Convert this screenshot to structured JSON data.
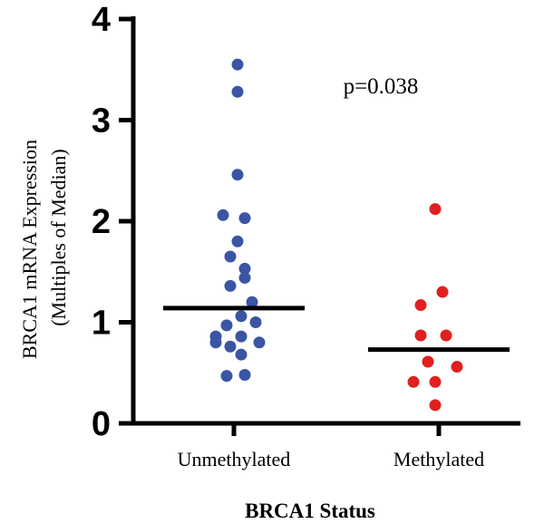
{
  "chart_data": {
    "type": "scatter",
    "title": "",
    "xlabel": "BRCA1 Status",
    "ylabel_line1": "BRCA1 mRNA Expression",
    "ylabel_line2": "(Multiples of Median)",
    "categories": [
      "Unmethylated",
      "Methylated"
    ],
    "ylim": [
      0,
      4
    ],
    "yticks": [
      "0",
      "1",
      "2",
      "3",
      "4"
    ],
    "annotation": "p=0.038",
    "grid": false,
    "series": [
      {
        "category": "Unmethylated",
        "color": "#3a55a4",
        "median": 1.14,
        "points": [
          {
            "x": 0.02,
            "y": 3.55
          },
          {
            "x": 0.02,
            "y": 3.28
          },
          {
            "x": 0.02,
            "y": 2.46
          },
          {
            "x": -0.06,
            "y": 2.06
          },
          {
            "x": 0.06,
            "y": 2.03
          },
          {
            "x": 0.02,
            "y": 1.8
          },
          {
            "x": -0.02,
            "y": 1.65
          },
          {
            "x": 0.06,
            "y": 1.53
          },
          {
            "x": 0.06,
            "y": 1.44
          },
          {
            "x": -0.02,
            "y": 1.36
          },
          {
            "x": 0.1,
            "y": 1.2
          },
          {
            "x": 0.04,
            "y": 1.06
          },
          {
            "x": 0.12,
            "y": 1.0
          },
          {
            "x": -0.04,
            "y": 0.97
          },
          {
            "x": -0.1,
            "y": 0.86
          },
          {
            "x": 0.04,
            "y": 0.86
          },
          {
            "x": -0.1,
            "y": 0.8
          },
          {
            "x": 0.14,
            "y": 0.8
          },
          {
            "x": -0.02,
            "y": 0.76
          },
          {
            "x": 0.04,
            "y": 0.68
          },
          {
            "x": -0.04,
            "y": 0.47
          },
          {
            "x": 0.06,
            "y": 0.48
          }
        ]
      },
      {
        "category": "Methylated",
        "color": "#e02020",
        "median": 0.73,
        "points": [
          {
            "x": -0.02,
            "y": 2.12
          },
          {
            "x": 0.02,
            "y": 1.3
          },
          {
            "x": -0.1,
            "y": 1.17
          },
          {
            "x": -0.1,
            "y": 0.87
          },
          {
            "x": 0.04,
            "y": 0.87
          },
          {
            "x": -0.06,
            "y": 0.61
          },
          {
            "x": 0.1,
            "y": 0.56
          },
          {
            "x": -0.14,
            "y": 0.41
          },
          {
            "x": -0.02,
            "y": 0.41
          },
          {
            "x": -0.02,
            "y": 0.18
          }
        ]
      }
    ]
  }
}
